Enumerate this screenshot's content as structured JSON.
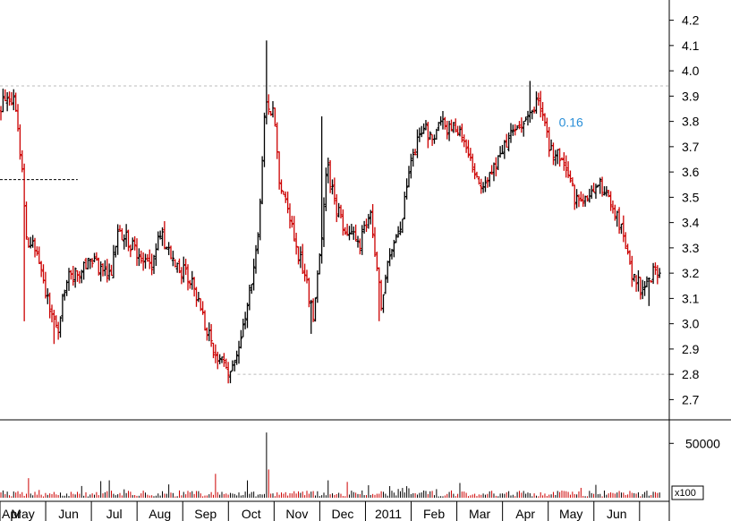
{
  "chart_data": {
    "type": "ohlc_volume",
    "price_axis": {
      "ylim": [
        2.62,
        4.28
      ],
      "ticks": [
        2.7,
        2.8,
        2.9,
        3.0,
        3.1,
        3.2,
        3.3,
        3.4,
        3.5,
        3.6,
        3.7,
        3.8,
        3.9,
        4.0,
        4.1,
        4.2
      ],
      "tick_labels": [
        "2.7",
        "2.8",
        "2.9",
        "3.0",
        "3.1",
        "3.2",
        "3.3",
        "3.4",
        "3.5",
        "3.6",
        "3.7",
        "3.8",
        "3.9",
        "4.0",
        "4.1",
        "4.2"
      ]
    },
    "volume_axis": {
      "ylim": [
        0,
        70000
      ],
      "ticks": [
        50000
      ],
      "tick_labels": [
        "50000"
      ],
      "unit_label": "x100"
    },
    "x_labels": [
      "Apr",
      "May",
      "Jun",
      "Jul",
      "Aug",
      "Sep",
      "Oct",
      "Nov",
      "Dec",
      "2011",
      "Feb",
      "Mar",
      "Apr",
      "May",
      "Jun"
    ],
    "x_positions": [
      0,
      0.5,
      1.5,
      2.5,
      3.5,
      4.5,
      5.5,
      6.5,
      7.5,
      8.5,
      9.5,
      10.5,
      11.5,
      12.5,
      13.5
    ],
    "x_domain": [
      0,
      14.65
    ],
    "colors": {
      "up": "#000000",
      "down": "#cc0000",
      "reference_line": "#bbbbbb",
      "annotation": "#2a8fd8"
    },
    "reference_lines": [
      {
        "value": 3.94,
        "style": "dotted",
        "from": 0.0
      },
      {
        "value": 2.8,
        "style": "dotted",
        "from": 5.2
      }
    ],
    "support_line": {
      "value": 3.57,
      "from": 0.0,
      "to": 1.7
    },
    "annotation": {
      "text": "0.16",
      "x": 12.5,
      "y": 3.78
    },
    "anchors": [
      [
        0.0,
        3.84
      ],
      [
        0.15,
        3.92
      ],
      [
        0.35,
        3.87
      ],
      [
        0.5,
        3.56
      ],
      [
        0.6,
        3.28
      ],
      [
        0.75,
        3.33
      ],
      [
        0.9,
        3.22
      ],
      [
        1.1,
        3.04
      ],
      [
        1.25,
        2.96
      ],
      [
        1.45,
        3.17
      ],
      [
        1.7,
        3.21
      ],
      [
        2.0,
        3.26
      ],
      [
        2.2,
        3.22
      ],
      [
        2.4,
        3.18
      ],
      [
        2.6,
        3.37
      ],
      [
        2.9,
        3.31
      ],
      [
        3.1,
        3.27
      ],
      [
        3.3,
        3.21
      ],
      [
        3.5,
        3.37
      ],
      [
        3.7,
        3.27
      ],
      [
        4.0,
        3.21
      ],
      [
        4.2,
        3.17
      ],
      [
        4.4,
        3.06
      ],
      [
        4.6,
        2.93
      ],
      [
        4.85,
        2.84
      ],
      [
        5.0,
        2.81
      ],
      [
        5.2,
        2.89
      ],
      [
        5.45,
        3.1
      ],
      [
        5.65,
        3.36
      ],
      [
        5.8,
        3.87
      ],
      [
        6.0,
        3.83
      ],
      [
        6.1,
        3.58
      ],
      [
        6.3,
        3.46
      ],
      [
        6.5,
        3.3
      ],
      [
        6.7,
        3.17
      ],
      [
        6.85,
        3.03
      ],
      [
        7.0,
        3.26
      ],
      [
        7.15,
        3.63
      ],
      [
        7.35,
        3.46
      ],
      [
        7.6,
        3.37
      ],
      [
        7.85,
        3.31
      ],
      [
        8.1,
        3.43
      ],
      [
        8.35,
        3.06
      ],
      [
        8.55,
        3.3
      ],
      [
        8.8,
        3.41
      ],
      [
        9.0,
        3.63
      ],
      [
        9.2,
        3.77
      ],
      [
        9.45,
        3.75
      ],
      [
        9.7,
        3.78
      ],
      [
        9.95,
        3.77
      ],
      [
        10.2,
        3.72
      ],
      [
        10.45,
        3.55
      ],
      [
        10.7,
        3.58
      ],
      [
        10.95,
        3.66
      ],
      [
        11.2,
        3.74
      ],
      [
        11.45,
        3.8
      ],
      [
        11.7,
        3.87
      ],
      [
        11.85,
        3.85
      ],
      [
        12.0,
        3.71
      ],
      [
        12.2,
        3.67
      ],
      [
        12.4,
        3.6
      ],
      [
        12.6,
        3.49
      ],
      [
        12.85,
        3.47
      ],
      [
        13.1,
        3.55
      ],
      [
        13.35,
        3.49
      ],
      [
        13.6,
        3.37
      ],
      [
        13.85,
        3.18
      ],
      [
        14.05,
        3.14
      ],
      [
        14.25,
        3.19
      ],
      [
        14.45,
        3.21
      ]
    ],
    "spikes": [
      {
        "x": 0.55,
        "low": 3.01
      },
      {
        "x": 1.2,
        "low": 2.92
      },
      {
        "x": 5.82,
        "high": 4.12
      },
      {
        "x": 5.05,
        "low": 2.77
      },
      {
        "x": 6.8,
        "low": 2.96
      },
      {
        "x": 7.05,
        "high": 3.82
      },
      {
        "x": 8.3,
        "low": 3.01
      },
      {
        "x": 11.58,
        "high": 3.96
      },
      {
        "x": 14.2,
        "low": 3.07
      }
    ],
    "volume_spikes": [
      {
        "x": 0.62,
        "v": 18000
      },
      {
        "x": 5.82,
        "v": 60000
      },
      {
        "x": 5.9,
        "v": 26000
      },
      {
        "x": 4.72,
        "v": 22000
      },
      {
        "x": 7.2,
        "v": 16000
      },
      {
        "x": 8.8,
        "v": 9000
      }
    ]
  }
}
